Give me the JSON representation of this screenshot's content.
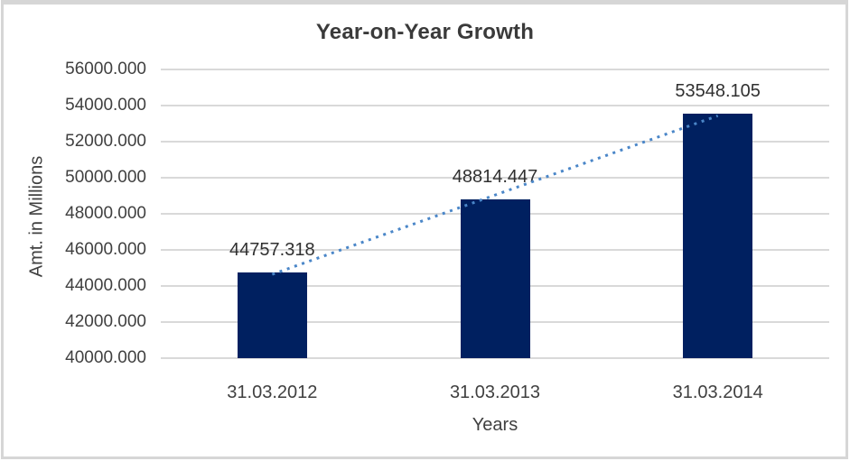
{
  "frame": {
    "background": "#ffffff",
    "border_color": "#d6d6d6"
  },
  "chart_data": {
    "type": "bar",
    "title": "Year-on-Year Growth",
    "categories": [
      "31.03.2012",
      "31.03.2013",
      "31.03.2014"
    ],
    "values": [
      44757.318,
      48814.447,
      53548.105
    ],
    "data_labels": [
      "44757.318",
      "48814.447",
      "53548.105"
    ],
    "xlabel": "Years",
    "ylabel": "Amt. in Millions",
    "ylim": [
      40000,
      56000
    ],
    "ytick_step": 2000,
    "ytick_labels": [
      "40000.000",
      "42000.000",
      "44000.000",
      "46000.000",
      "48000.000",
      "50000.000",
      "52000.000",
      "54000.000",
      "56000.000"
    ],
    "grid": true,
    "legend": "none",
    "trendline": {
      "type": "linear",
      "style": "dotted",
      "color": "#4a86c8"
    },
    "colors": {
      "bar": "#002060",
      "gridline": "#d9d9d9",
      "text": "#404040"
    }
  }
}
